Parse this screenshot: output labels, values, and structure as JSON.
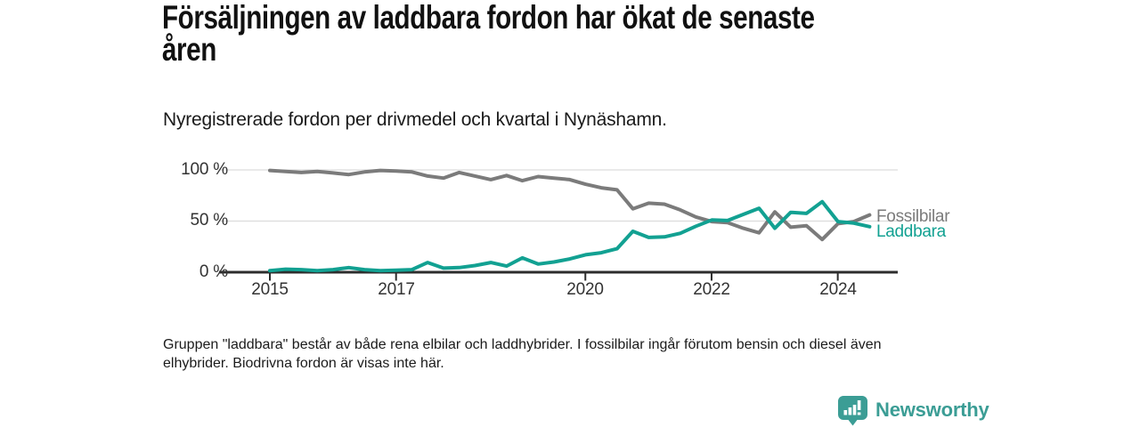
{
  "page": {
    "title": "Försäljningen av laddbara fordon har ökat de senaste åren",
    "title_lines": [
      "Försäljningen av laddbara fordon har ökat de senaste",
      "åren"
    ],
    "subtitle": "Nyregistrerade fordon per drivmedel och kvartal i Nynäshamn.",
    "footnote": "Gruppen \"laddbara\" består av både rena elbilar och laddhybrider. I fossilbilar ingår förutom bensin och diesel även elhybrider. Biodrivna fordon är visas inte här.",
    "footnote_lines": [
      "Gruppen \"laddbara\" består av både rena elbilar och laddhybrider. I fossilbilar ingår förutom bensin och diesel även",
      "elhybrider. Biodrivna fordon är visas inte här."
    ],
    "brand": {
      "name": "Newsworthy",
      "logo_icon": "bar-chart-speech-bubble-icon",
      "color": "#3b9d95"
    }
  },
  "chart_data": {
    "type": "line",
    "title": "Försäljningen av laddbara fordon har ökat de senaste åren",
    "subtitle": "Nyregistrerade fordon per drivmedel och kvartal i Nynäshamn.",
    "x_unit": "quarter",
    "grid": "horizontal",
    "legend_position": "right-of-line-ends",
    "ylim": [
      0,
      100
    ],
    "y_ticks": [
      {
        "value": 100,
        "label": "100 %"
      },
      {
        "value": 50,
        "label": "50 %"
      },
      {
        "value": 0,
        "label": "0 %"
      }
    ],
    "x_ticks": [
      {
        "year": 2015,
        "label": "2015"
      },
      {
        "year": 2017,
        "label": "2017"
      },
      {
        "year": 2020,
        "label": "2020"
      },
      {
        "year": 2022,
        "label": "2022"
      },
      {
        "year": 2024,
        "label": "2024"
      }
    ],
    "quarters": [
      "2015 Q1",
      "2015 Q2",
      "2015 Q3",
      "2015 Q4",
      "2016 Q1",
      "2016 Q2",
      "2016 Q3",
      "2016 Q4",
      "2017 Q1",
      "2017 Q2",
      "2017 Q3",
      "2017 Q4",
      "2018 Q1",
      "2018 Q2",
      "2018 Q3",
      "2018 Q4",
      "2019 Q1",
      "2019 Q2",
      "2019 Q3",
      "2019 Q4",
      "2020 Q1",
      "2020 Q2",
      "2020 Q3",
      "2020 Q4",
      "2021 Q1",
      "2021 Q2",
      "2021 Q3",
      "2021 Q4",
      "2022 Q1",
      "2022 Q2",
      "2022 Q3",
      "2022 Q4",
      "2023 Q1",
      "2023 Q2",
      "2023 Q3",
      "2023 Q4",
      "2024 Q1",
      "2024 Q2",
      "2024 Q3"
    ],
    "series": [
      {
        "name": "Fossilbilar",
        "color": "#7b7b7b",
        "values": [
          99.5,
          98.5,
          97.5,
          98.5,
          97,
          95.5,
          98,
          99.5,
          99,
          98,
          94,
          92,
          97.5,
          94,
          90.5,
          94.5,
          89.5,
          93.5,
          92,
          90.5,
          86,
          82.5,
          80.5,
          62,
          67.5,
          66.5,
          61,
          54,
          49.5,
          48.5,
          43,
          38.5,
          59,
          44,
          45.5,
          32,
          47.5,
          49.5,
          56
        ]
      },
      {
        "name": "Laddbara",
        "color": "#12a192",
        "values": [
          1.5,
          3,
          2.5,
          1.5,
          2.5,
          4.5,
          2.5,
          1.5,
          2,
          2.5,
          9.5,
          4,
          4.5,
          6.5,
          9.5,
          6,
          14,
          8,
          10,
          13,
          17,
          19,
          23,
          40,
          34,
          34.5,
          38,
          45,
          51,
          50.5,
          56.5,
          62.5,
          43,
          58.5,
          57.5,
          69,
          49.5,
          48,
          44.5
        ]
      }
    ]
  }
}
